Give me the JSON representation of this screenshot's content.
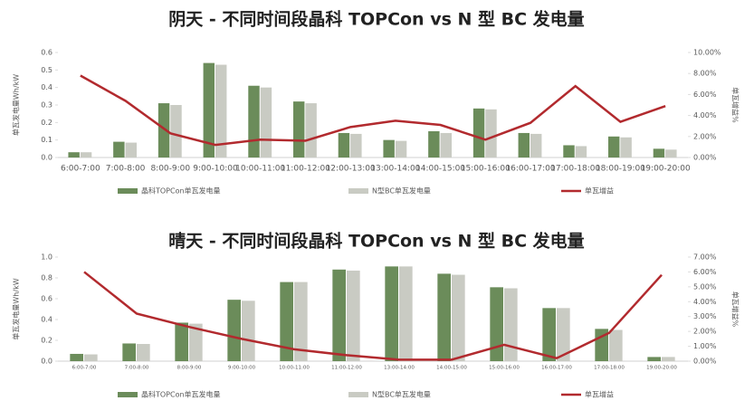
{
  "chart_data": [
    {
      "type": "bar-line",
      "title": "阴天 - 不同时间段晶科 TOPCon vs N 型 BC 发电量",
      "y_label": "单瓦发电量Wh/kW",
      "y2_label": "单瓦增益%",
      "categories": [
        "6:00-7:00",
        "7:00-8:00",
        "8:00-9:00",
        "9:00-10:00",
        "10:00-11:00",
        "11:00-12:00",
        "12:00-13:00",
        "13:00-14:00",
        "14:00-15:00",
        "15:00-16:00",
        "16:00-17:00",
        "17:00-18:00",
        "18:00-19:00",
        "19:00-20:00"
      ],
      "series": [
        {
          "name": "晶科TOPCon单瓦发电量",
          "color": "#6b8c5a",
          "kind": "bar",
          "values": [
            0.03,
            0.09,
            0.31,
            0.54,
            0.41,
            0.32,
            0.14,
            0.1,
            0.15,
            0.28,
            0.14,
            0.07,
            0.12,
            0.05
          ]
        },
        {
          "name": "N型BC单瓦发电量",
          "color": "#c9cbc3",
          "kind": "bar",
          "values": [
            0.03,
            0.085,
            0.3,
            0.53,
            0.4,
            0.31,
            0.135,
            0.095,
            0.14,
            0.275,
            0.135,
            0.065,
            0.115,
            0.045
          ]
        },
        {
          "name": "单瓦增益",
          "color": "#b22a2e",
          "kind": "line",
          "axis": "y2",
          "values": [
            7.8,
            5.4,
            2.3,
            1.2,
            1.7,
            1.6,
            2.9,
            3.5,
            3.1,
            1.7,
            3.3,
            6.8,
            3.4,
            4.9
          ]
        }
      ],
      "ylim": [
        0,
        0.6
      ],
      "yticks": [
        {
          "value": 0,
          "label": "0.0"
        },
        0.1,
        0.2,
        0.3,
        0.4,
        0.5,
        0.6
      ],
      "y2lim": [
        0,
        10
      ],
      "y2ticks": [
        {
          "value": 0,
          "label": "0.00%"
        },
        {
          "value": 2,
          "label": "2.00%"
        },
        {
          "value": 4,
          "label": "4.00%"
        },
        {
          "value": 6,
          "label": "6.00%"
        },
        {
          "value": 8,
          "label": "8.00%"
        },
        {
          "value": 10,
          "label": "10.00%"
        }
      ]
    },
    {
      "type": "bar-line",
      "title": "晴天 - 不同时间段晶科 TOPCon vs N 型 BC 发电量",
      "y_label": "单瓦发电量Wh/kW",
      "y2_label": "单瓦增益%",
      "categories": [
        "6:00-7:00",
        "7:00-8:00",
        "8:00-9:00",
        "9:00-10:00",
        "10:00-11:00",
        "11:00-12:00",
        "13:00-14:00",
        "14:00-15:00",
        "15:00-16:00",
        "16:00-17:00",
        "17:00-18:00",
        "19:00-20:00"
      ],
      "series": [
        {
          "name": "晶科TOPCon单瓦发电量",
          "color": "#6b8c5a",
          "kind": "bar",
          "values": [
            0.07,
            0.17,
            0.37,
            0.59,
            0.76,
            0.88,
            0.91,
            0.84,
            0.71,
            0.51,
            0.31,
            0.04
          ]
        },
        {
          "name": "N型BC单瓦发电量",
          "color": "#c9cbc3",
          "kind": "bar",
          "values": [
            0.065,
            0.165,
            0.36,
            0.58,
            0.76,
            0.87,
            0.91,
            0.83,
            0.7,
            0.51,
            0.3,
            0.04
          ]
        },
        {
          "name": "单瓦增益",
          "color": "#b22a2e",
          "kind": "line",
          "axis": "y2",
          "values": [
            6.0,
            3.2,
            2.3,
            1.5,
            0.8,
            0.4,
            0.1,
            0.1,
            1.1,
            0.2,
            1.9,
            5.8
          ]
        }
      ],
      "ylim": [
        0,
        1
      ],
      "yticks": [
        {
          "value": 0,
          "label": "0.0"
        },
        0.2,
        0.4,
        0.6,
        0.8,
        {
          "value": 1,
          "label": "1.0"
        }
      ],
      "y2lim": [
        0,
        7
      ],
      "y2ticks": [
        {
          "value": 0,
          "label": "0.00%"
        },
        {
          "value": 1,
          "label": "1.00%"
        },
        {
          "value": 2,
          "label": "2.00%"
        },
        {
          "value": 3,
          "label": "3.00%"
        },
        {
          "value": 4,
          "label": "4.00%"
        },
        {
          "value": 5,
          "label": "5.00%"
        },
        {
          "value": 6,
          "label": "6.00%"
        },
        {
          "value": 7,
          "label": "7.00%"
        }
      ]
    }
  ]
}
